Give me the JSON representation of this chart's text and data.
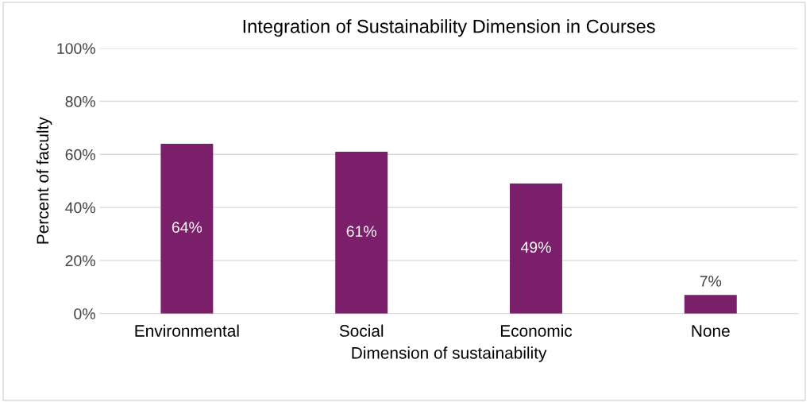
{
  "chart_data": {
    "type": "bar",
    "title": "Integration of Sustainability Dimension in Courses",
    "xlabel": "Dimension of sustainability",
    "ylabel": "Percent of faculty",
    "categories": [
      "Environmental",
      "Social",
      "Economic",
      "None"
    ],
    "values": [
      64,
      61,
      49,
      7
    ],
    "value_labels": [
      "64%",
      "61%",
      "49%",
      "7%"
    ],
    "color": "#7b1f6a",
    "ylim": [
      0,
      100
    ],
    "yticks": [
      {
        "value": 0,
        "label": "0%"
      },
      {
        "value": 20,
        "label": "20%"
      },
      {
        "value": 40,
        "label": "40%"
      },
      {
        "value": 60,
        "label": "60%"
      },
      {
        "value": 80,
        "label": "80%"
      },
      {
        "value": 100,
        "label": "100%"
      }
    ],
    "grid": "y"
  }
}
